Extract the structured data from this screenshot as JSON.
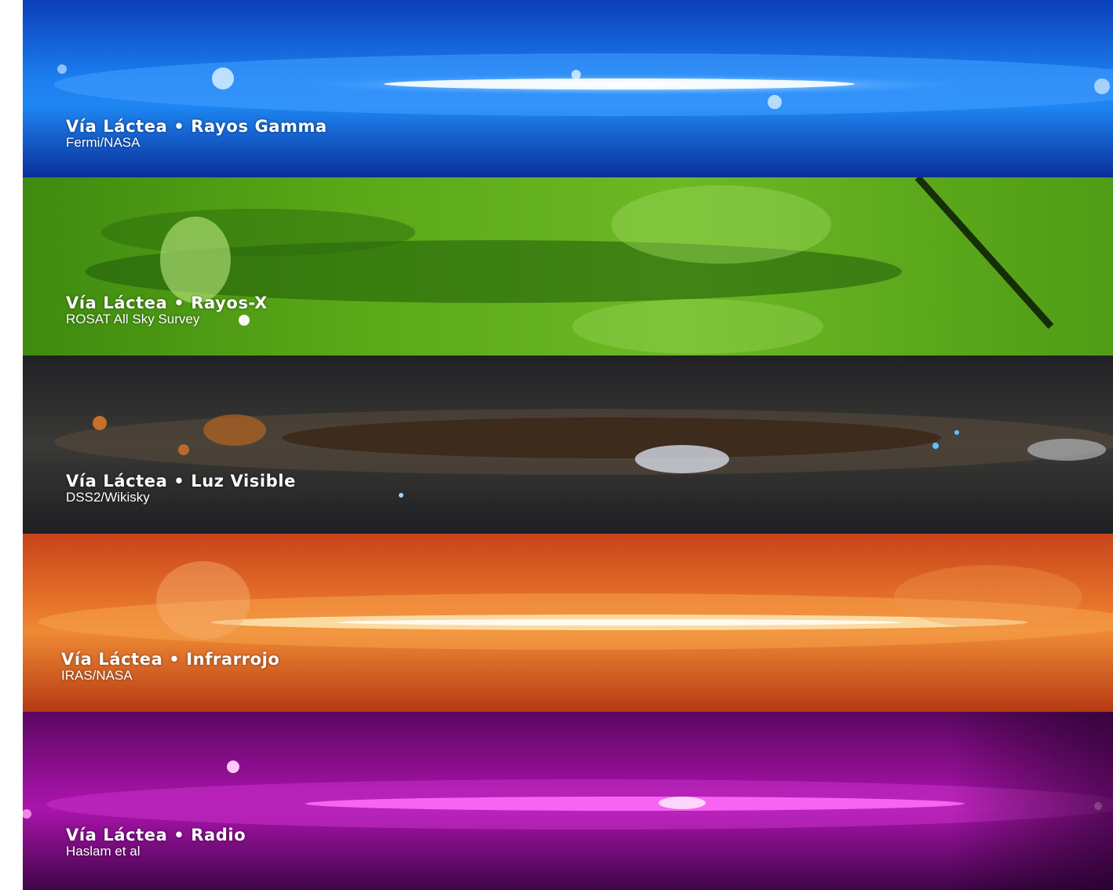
{
  "bands": [
    {
      "title": "Vía Láctea • Rayos Gamma",
      "credit": "Fermi/NASA",
      "color": "#1a6fe0"
    },
    {
      "title": "Vía Láctea • Rayos-X",
      "credit": "ROSAT All Sky Survey",
      "color": "#4f9a14"
    },
    {
      "title": "Vía Láctea • Luz Visible",
      "credit": "DSS2/Wikisky",
      "color": "#2b2b2d"
    },
    {
      "title": "Vía Láctea • Infrarrojo",
      "credit": "IRAS/NASA",
      "color": "#d8501c"
    },
    {
      "title": "Vía Láctea • Radio",
      "credit": "Haslam et al",
      "color": "#7a0a78"
    }
  ]
}
